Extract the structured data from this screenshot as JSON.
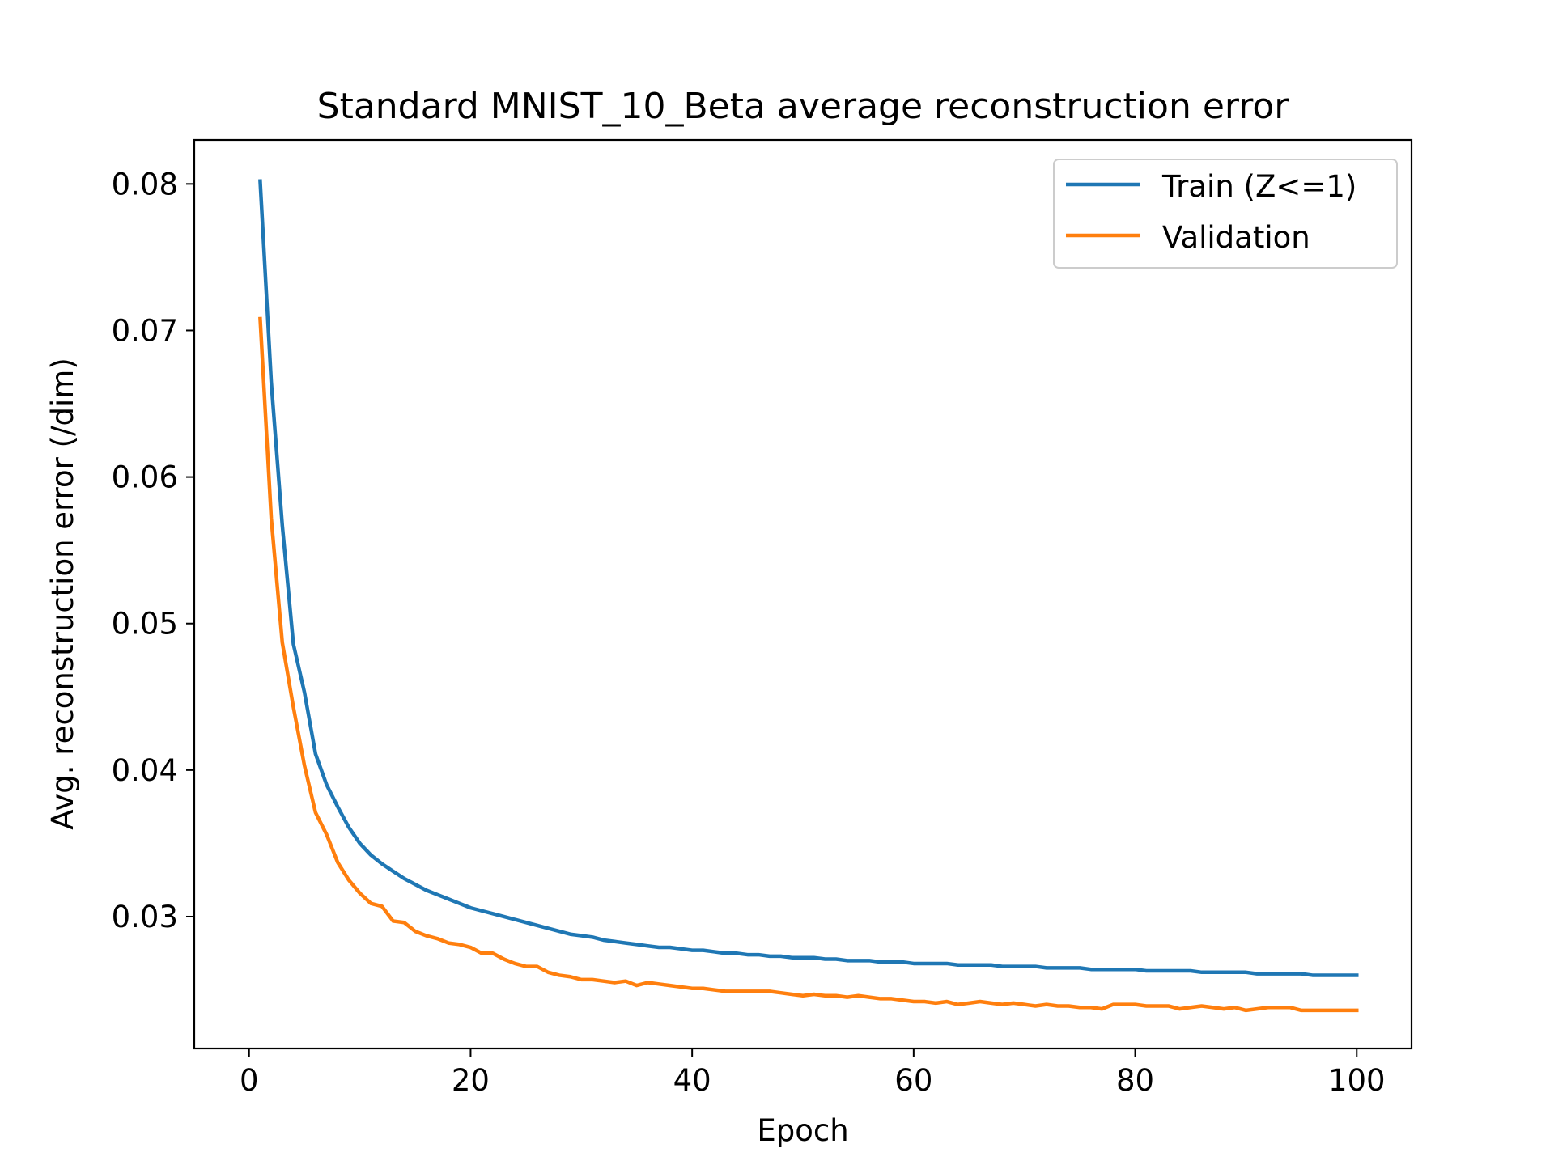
{
  "chart_data": {
    "type": "line",
    "title": "Standard MNIST_10_Beta average reconstruction error",
    "xlabel": "Epoch",
    "ylabel": "Avg. reconstruction error (/dim)",
    "xlim": [
      -4.95,
      104.95
    ],
    "ylim": [
      0.021,
      0.083
    ],
    "xticks": [
      0,
      20,
      40,
      60,
      80,
      100
    ],
    "yticks": [
      0.03,
      0.04,
      0.05,
      0.06,
      0.07,
      0.08
    ],
    "xtick_labels": [
      "0",
      "20",
      "40",
      "60",
      "80",
      "100"
    ],
    "ytick_labels": [
      "0.03",
      "0.04",
      "0.05",
      "0.06",
      "0.07",
      "0.08"
    ],
    "grid": false,
    "legend_position": "top-right",
    "x": [
      1,
      2,
      3,
      4,
      5,
      6,
      7,
      8,
      9,
      10,
      11,
      12,
      13,
      14,
      15,
      16,
      17,
      18,
      19,
      20,
      21,
      22,
      23,
      24,
      25,
      26,
      27,
      28,
      29,
      30,
      31,
      32,
      33,
      34,
      35,
      36,
      37,
      38,
      39,
      40,
      41,
      42,
      43,
      44,
      45,
      46,
      47,
      48,
      49,
      50,
      51,
      52,
      53,
      54,
      55,
      56,
      57,
      58,
      59,
      60,
      61,
      62,
      63,
      64,
      65,
      66,
      67,
      68,
      69,
      70,
      71,
      72,
      73,
      74,
      75,
      76,
      77,
      78,
      79,
      80,
      81,
      82,
      83,
      84,
      85,
      86,
      87,
      88,
      89,
      90,
      91,
      92,
      93,
      94,
      95,
      96,
      97,
      98,
      99,
      100
    ],
    "series": [
      {
        "name": "Train (Z<=1)",
        "color": "#1f77b4",
        "values": [
          0.0802,
          0.0665,
          0.0567,
          0.0486,
          0.0453,
          0.0411,
          0.039,
          0.0375,
          0.0361,
          0.035,
          0.0342,
          0.0336,
          0.0331,
          0.0326,
          0.0322,
          0.0318,
          0.0315,
          0.0312,
          0.0309,
          0.0306,
          0.0304,
          0.0302,
          0.03,
          0.0298,
          0.0296,
          0.0294,
          0.0292,
          0.029,
          0.0288,
          0.0287,
          0.0286,
          0.0284,
          0.0283,
          0.0282,
          0.0281,
          0.028,
          0.0279,
          0.0279,
          0.0278,
          0.0277,
          0.0277,
          0.0276,
          0.0275,
          0.0275,
          0.0274,
          0.0274,
          0.0273,
          0.0273,
          0.0272,
          0.0272,
          0.0272,
          0.0271,
          0.0271,
          0.027,
          0.027,
          0.027,
          0.0269,
          0.0269,
          0.0269,
          0.0268,
          0.0268,
          0.0268,
          0.0268,
          0.0267,
          0.0267,
          0.0267,
          0.0267,
          0.0266,
          0.0266,
          0.0266,
          0.0266,
          0.0265,
          0.0265,
          0.0265,
          0.0265,
          0.0264,
          0.0264,
          0.0264,
          0.0264,
          0.0264,
          0.0263,
          0.0263,
          0.0263,
          0.0263,
          0.0263,
          0.0262,
          0.0262,
          0.0262,
          0.0262,
          0.0262,
          0.0261,
          0.0261,
          0.0261,
          0.0261,
          0.0261,
          0.026,
          0.026,
          0.026,
          0.026,
          0.026
        ]
      },
      {
        "name": "Validation",
        "color": "#ff7f0e",
        "values": [
          0.0708,
          0.0572,
          0.0487,
          0.0443,
          0.0403,
          0.0371,
          0.0356,
          0.0337,
          0.0325,
          0.0316,
          0.0309,
          0.0307,
          0.0297,
          0.0296,
          0.029,
          0.0287,
          0.0285,
          0.0282,
          0.0281,
          0.0279,
          0.0275,
          0.0275,
          0.0271,
          0.0268,
          0.0266,
          0.0266,
          0.0262,
          0.026,
          0.0259,
          0.0257,
          0.0257,
          0.0256,
          0.0255,
          0.0256,
          0.0253,
          0.0255,
          0.0254,
          0.0253,
          0.0252,
          0.0251,
          0.0251,
          0.025,
          0.0249,
          0.0249,
          0.0249,
          0.0249,
          0.0249,
          0.0248,
          0.0247,
          0.0246,
          0.0247,
          0.0246,
          0.0246,
          0.0245,
          0.0246,
          0.0245,
          0.0244,
          0.0244,
          0.0243,
          0.0242,
          0.0242,
          0.0241,
          0.0242,
          0.024,
          0.0241,
          0.0242,
          0.0241,
          0.024,
          0.0241,
          0.024,
          0.0239,
          0.024,
          0.0239,
          0.0239,
          0.0238,
          0.0238,
          0.0237,
          0.024,
          0.024,
          0.024,
          0.0239,
          0.0239,
          0.0239,
          0.0237,
          0.0238,
          0.0239,
          0.0238,
          0.0237,
          0.0238,
          0.0236,
          0.0237,
          0.0238,
          0.0238,
          0.0238,
          0.0236,
          0.0236,
          0.0236,
          0.0236,
          0.0236,
          0.0236
        ]
      }
    ]
  }
}
